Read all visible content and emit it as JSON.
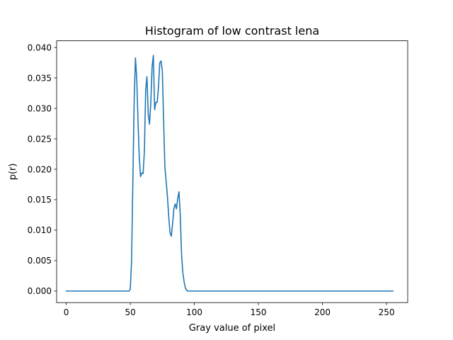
{
  "chart_data": {
    "type": "line",
    "title": "Histogram of low contrast lena",
    "xlabel": "Gray value of pixel",
    "ylabel": "p(r)",
    "xlim": [
      -7.5,
      266.5
    ],
    "ylim": [
      -0.0019,
      0.0411
    ],
    "grid": false,
    "xticks": [
      0,
      50,
      100,
      150,
      200,
      250
    ],
    "yticks": [
      0.0,
      0.005,
      0.01,
      0.015,
      0.02,
      0.025,
      0.03,
      0.035,
      0.04
    ],
    "xtick_labels": [
      "0",
      "50",
      "100",
      "150",
      "200",
      "250"
    ],
    "ytick_labels": [
      "0.000",
      "0.005",
      "0.010",
      "0.015",
      "0.020",
      "0.025",
      "0.030",
      "0.035",
      "0.040"
    ],
    "series_color": "#1f77b4",
    "x": [
      0,
      49,
      50,
      51,
      52,
      53,
      54,
      55,
      56,
      57,
      58,
      59,
      60,
      61,
      62,
      63,
      64,
      65,
      66,
      67,
      68,
      69,
      70,
      71,
      72,
      73,
      74,
      75,
      76,
      77,
      78,
      79,
      80,
      81,
      82,
      83,
      84,
      85,
      86,
      87,
      88,
      89,
      90,
      91,
      92,
      93,
      94,
      95,
      96,
      97,
      98,
      255
    ],
    "y": [
      0,
      0,
      0.0003,
      0.005,
      0.018,
      0.031,
      0.0383,
      0.035,
      0.028,
      0.022,
      0.0188,
      0.0194,
      0.0193,
      0.023,
      0.033,
      0.0352,
      0.029,
      0.0274,
      0.031,
      0.0368,
      0.0387,
      0.0298,
      0.031,
      0.031,
      0.0335,
      0.0375,
      0.0378,
      0.0362,
      0.028,
      0.0203,
      0.018,
      0.0155,
      0.0122,
      0.0096,
      0.009,
      0.011,
      0.0135,
      0.0143,
      0.0135,
      0.0152,
      0.0163,
      0.0125,
      0.006,
      0.003,
      0.0015,
      0.0005,
      0.0001,
      0,
      0,
      0,
      0,
      0
    ]
  }
}
